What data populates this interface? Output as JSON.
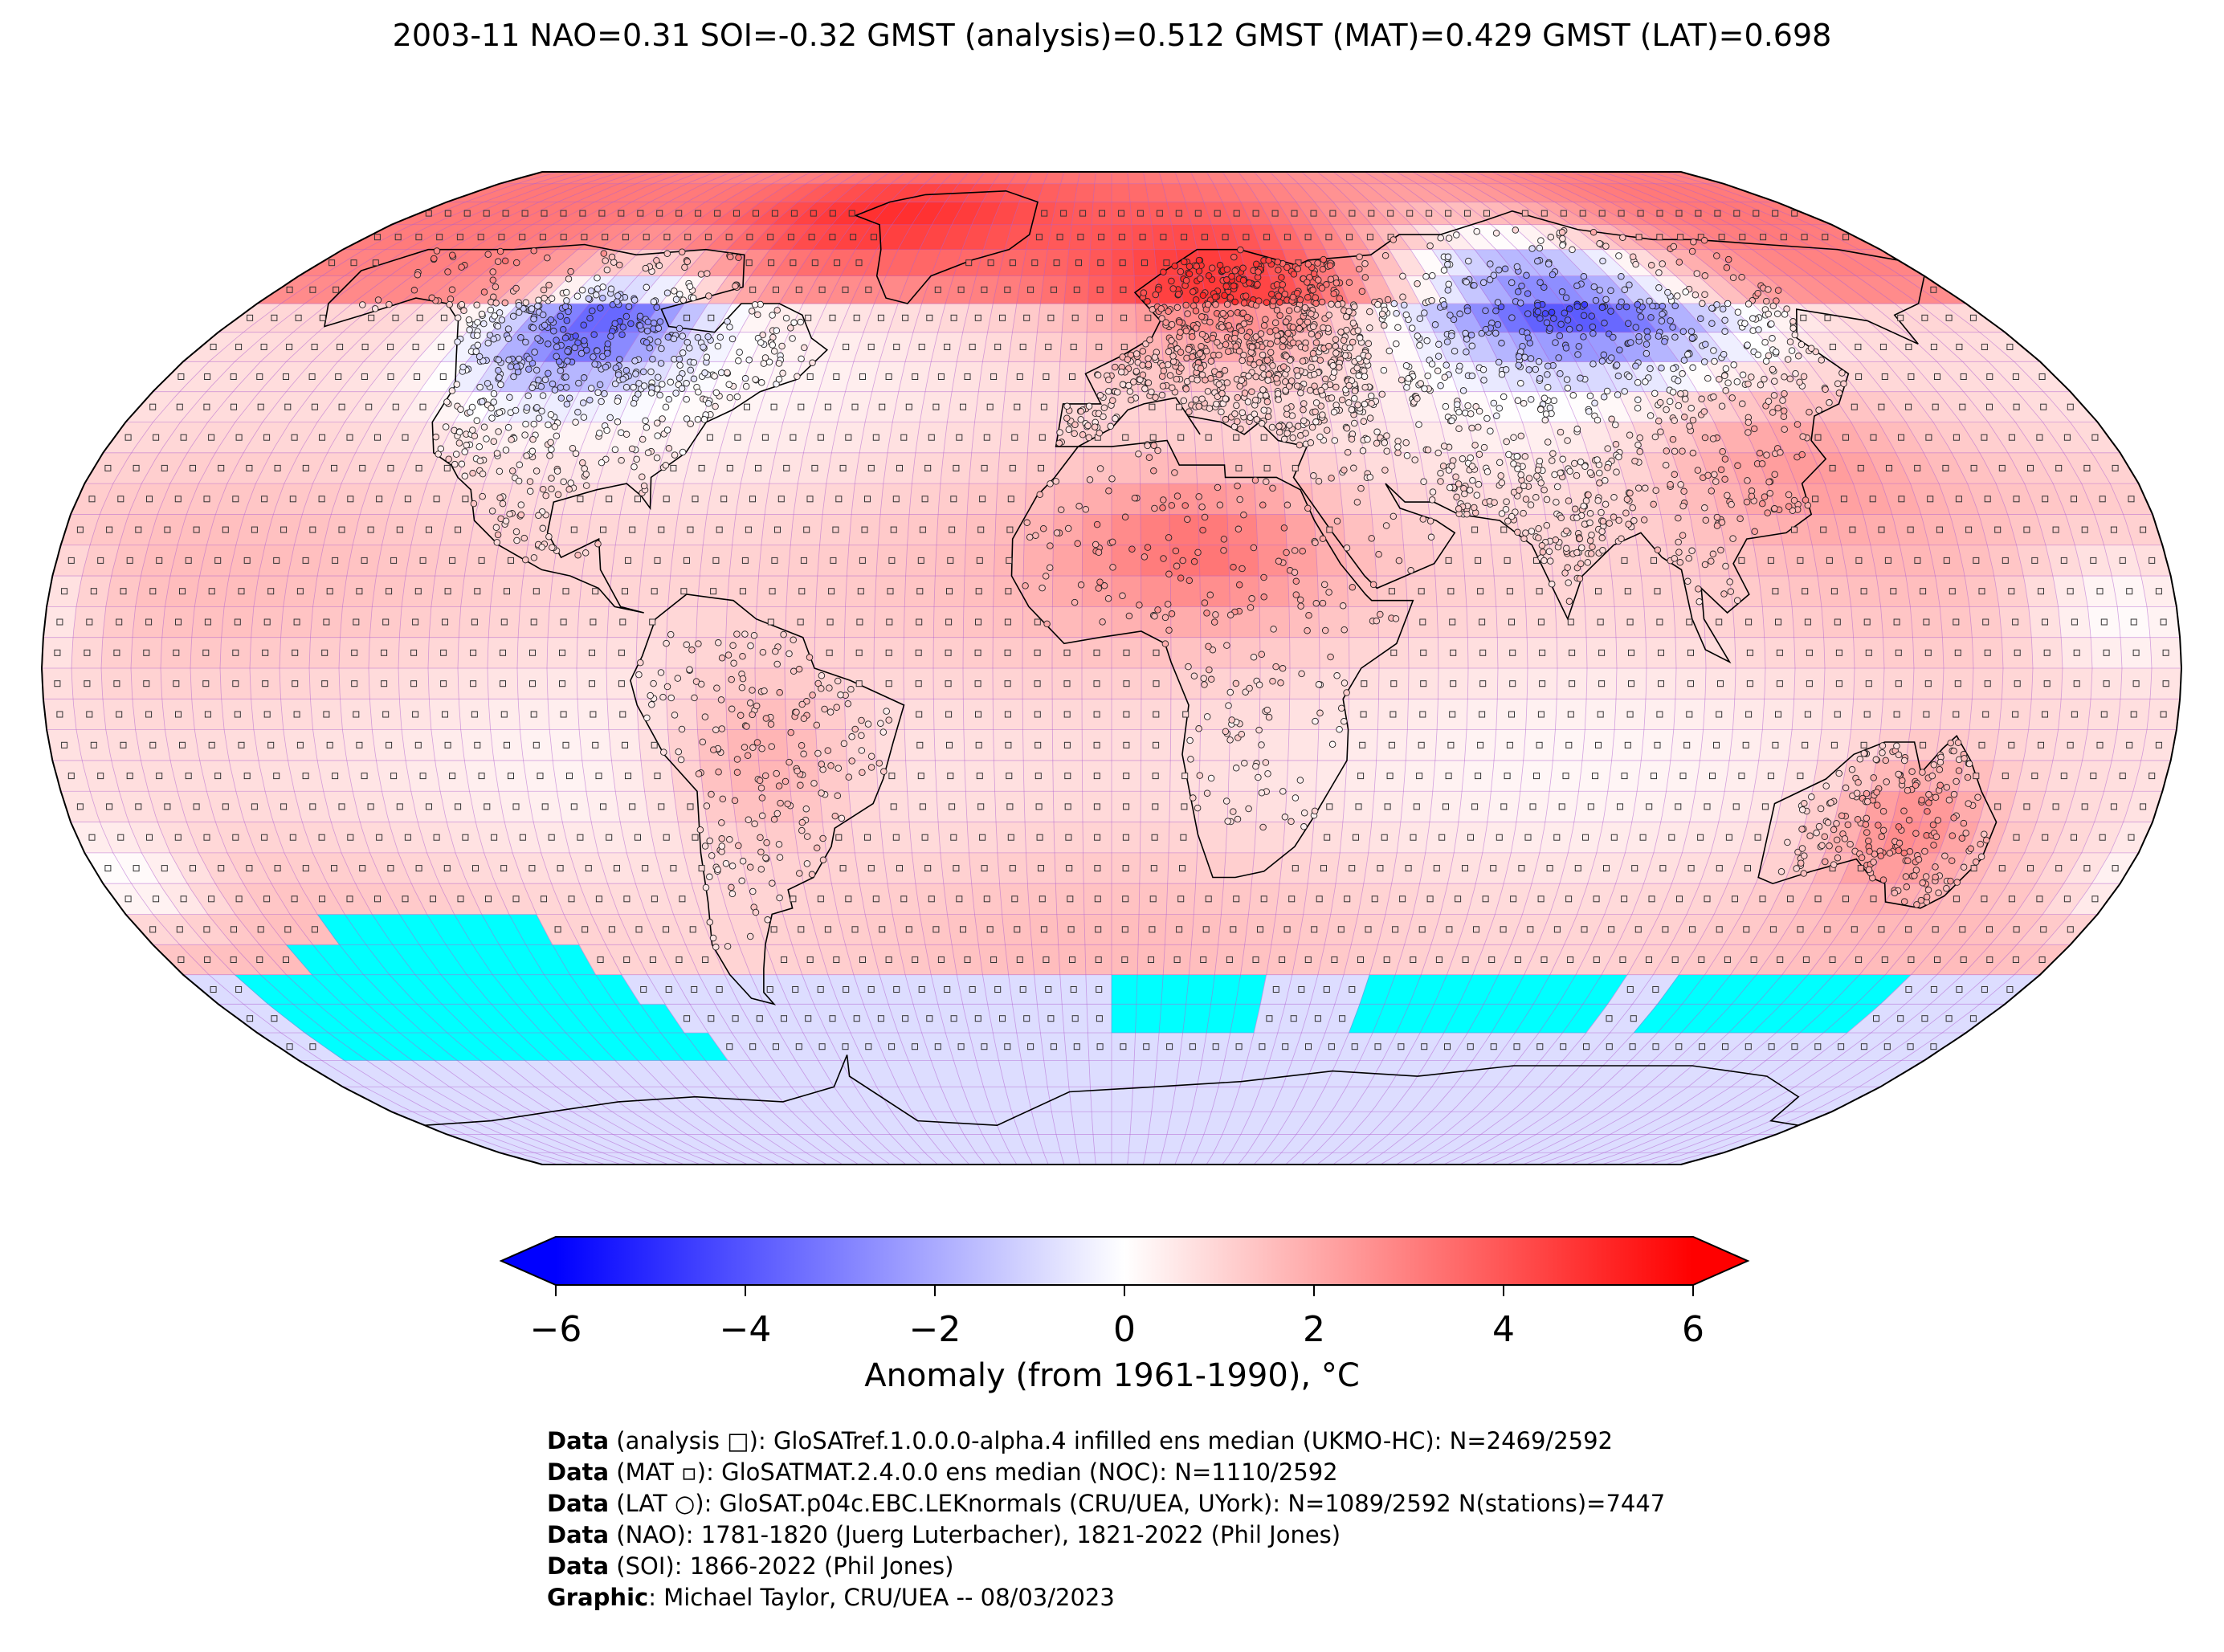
{
  "title": "2003-11 NAO=0.31 SOI=-0.32 GMST (analysis)=0.512 GMST (MAT)=0.429 GMST (LAT)=0.698",
  "colorbar": {
    "label": "Anomaly (from 1961-1990), °C",
    "min": -6,
    "max": 6,
    "ticks": [
      "−6",
      "−4",
      "−2",
      "0",
      "2",
      "4",
      "6"
    ],
    "tick_values": [
      -6,
      -4,
      -2,
      0,
      2,
      4,
      6
    ],
    "colormap": "bwr",
    "color_low": "#0000ff",
    "color_mid": "#ffffff",
    "color_high": "#ff0000",
    "extend": "both"
  },
  "map": {
    "projection": "Robinson",
    "grid_resolution_deg": 5,
    "grid_line_color": "#b060d0",
    "missing_color": "#00ffff",
    "coastline_color": "#000000",
    "markers": {
      "analysis": "square",
      "mat": "small-square",
      "lat": "circle"
    }
  },
  "credits": [
    {
      "bold": "Data",
      "text": " (analysis □): GloSATref.1.0.0.0-alpha.4 infilled ens median (UKMO-HC): N=2469/2592"
    },
    {
      "bold": "Data",
      "text": " (MAT ▫): GloSATMAT.2.4.0.0 ens median (NOC): N=1110/2592"
    },
    {
      "bold": "Data",
      "text": " (LAT ○): GloSAT.p04c.EBC.LEKnormals (CRU/UEA, UYork): N=1089/2592 N(stations)=7447"
    },
    {
      "bold": "Data",
      "text": " (NAO): 1781-1820 (Juerg Luterbacher), 1821-2022 (Phil Jones)"
    },
    {
      "bold": "Data",
      "text": " (SOI): 1866-2022 (Phil Jones)"
    },
    {
      "bold": "Graphic",
      "text": ": Michael Taylor, CRU/UEA -- 08/03/2023"
    }
  ]
}
